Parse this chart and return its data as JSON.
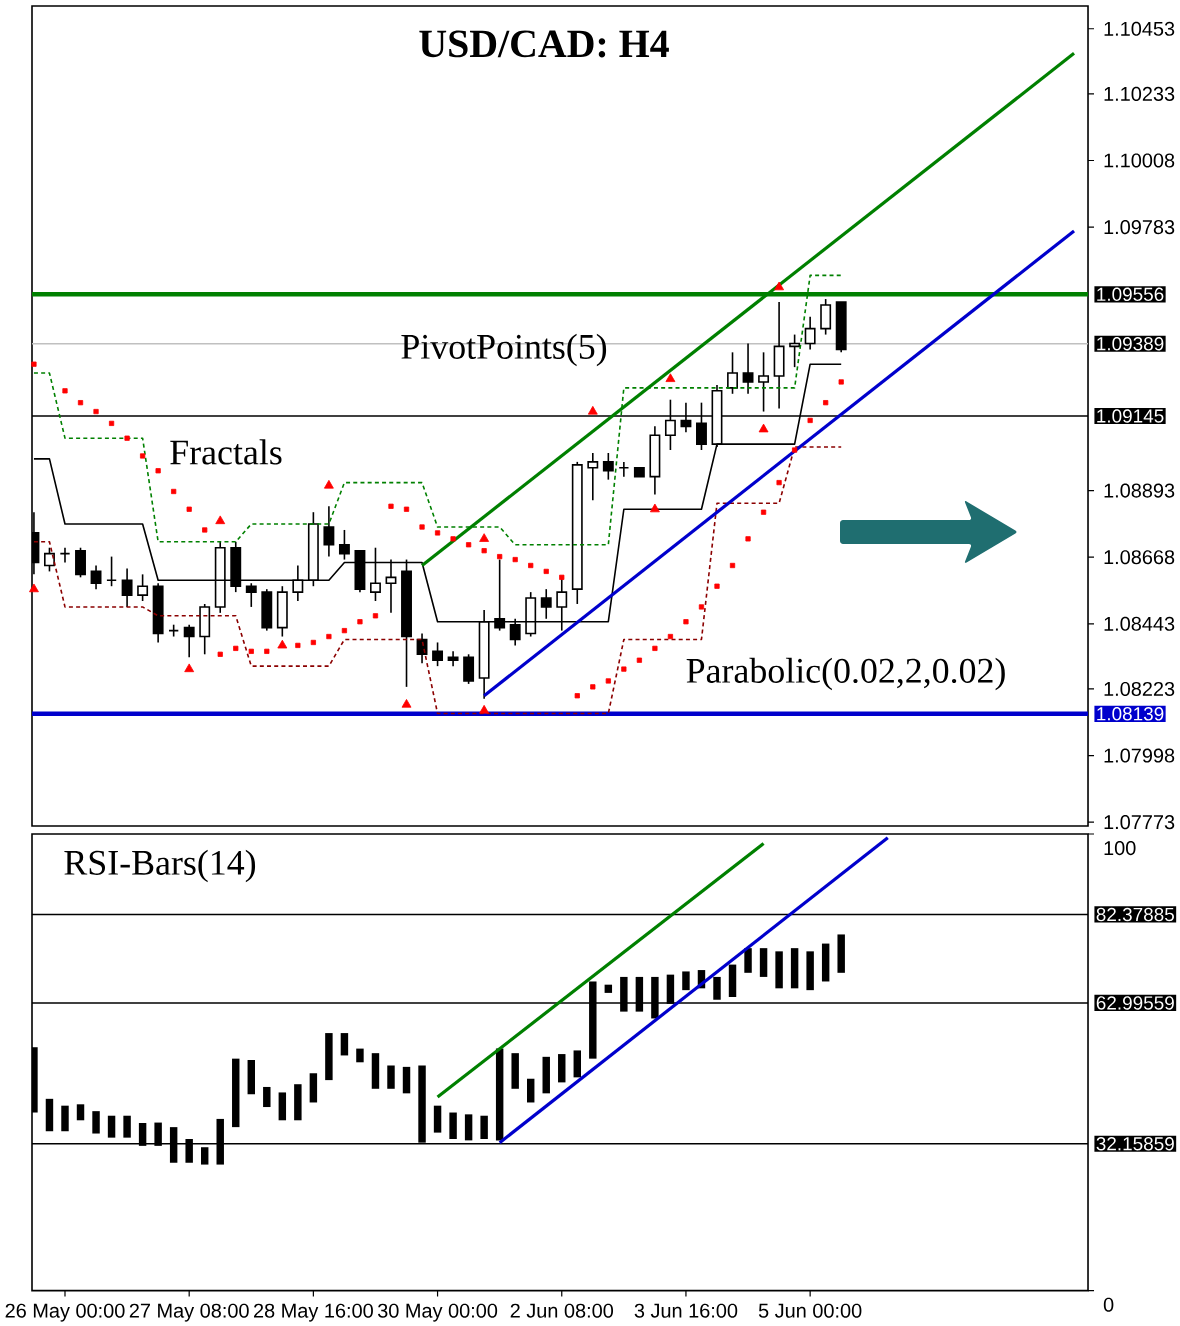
{
  "chart_data": [
    {
      "type": "candlestick",
      "title": "USD/CAD: H4",
      "color": "#000000",
      "categories": [
        null,
        null,
        null,
        null,
        null,
        null,
        null,
        null,
        null,
        null,
        null,
        null,
        null,
        null,
        null,
        null,
        null,
        null,
        null,
        null,
        null,
        null,
        null,
        null,
        null,
        null,
        null,
        null,
        null,
        null,
        null,
        null,
        null,
        null,
        null,
        null,
        null,
        null,
        null,
        null,
        null,
        null,
        null,
        null,
        null,
        null,
        null,
        null,
        null,
        null,
        null,
        null,
        null,
        null,
        null,
        null,
        null,
        null,
        null,
        null,
        null,
        null,
        null,
        null,
        null,
        null,
        null,
        null
      ],
      "ohlc": [
        [
          1.0875,
          1.0882,
          1.0861,
          1.0865
        ],
        [
          1.0864,
          1.087,
          1.0862,
          1.0868
        ],
        [
          1.0868,
          1.087,
          1.0865,
          1.0868
        ],
        [
          1.0869,
          1.087,
          1.086,
          1.0861
        ],
        [
          1.0862,
          1.0864,
          1.0856,
          1.0858
        ],
        [
          1.0859,
          1.0867,
          1.0857,
          1.0859
        ],
        [
          1.0859,
          1.0863,
          1.085,
          1.0854
        ],
        [
          1.0854,
          1.0861,
          1.0852,
          1.0857
        ],
        [
          1.0857,
          1.0858,
          1.0838,
          1.0841
        ],
        [
          1.0842,
          1.0844,
          1.084,
          1.0842
        ],
        [
          1.0843,
          1.0844,
          1.0833,
          1.084
        ],
        [
          1.084,
          1.0851,
          1.0834,
          1.085
        ],
        [
          1.085,
          1.0872,
          1.0848,
          1.087
        ],
        [
          1.087,
          1.0872,
          1.0855,
          1.0857
        ],
        [
          1.0857,
          1.0858,
          1.085,
          1.0855
        ],
        [
          1.0855,
          1.0856,
          1.0842,
          1.0843
        ],
        [
          1.0843,
          1.0857,
          1.084,
          1.0855
        ],
        [
          1.0855,
          1.0864,
          1.0852,
          1.0859
        ],
        [
          1.0859,
          1.0882,
          1.0857,
          1.0878
        ],
        [
          1.0877,
          1.0884,
          1.0867,
          1.0871
        ],
        [
          1.0871,
          1.0876,
          1.0866,
          1.0868
        ],
        [
          1.0869,
          1.0869,
          1.0855,
          1.0856
        ],
        [
          1.0855,
          1.087,
          1.0852,
          1.0858
        ],
        [
          1.0858,
          1.0866,
          1.0848,
          1.086
        ],
        [
          1.0862,
          1.0866,
          1.0823,
          1.084
        ],
        [
          1.0839,
          1.0841,
          1.0831,
          1.0834
        ],
        [
          1.0835,
          1.0838,
          1.083,
          1.0832
        ],
        [
          1.0833,
          1.0835,
          1.083,
          1.0832
        ],
        [
          1.0833,
          1.0834,
          1.0824,
          1.0825
        ],
        [
          1.0826,
          1.0849,
          1.0819,
          1.0845
        ],
        [
          1.0846,
          1.0866,
          1.0842,
          1.0843
        ],
        [
          1.0844,
          1.0846,
          1.0837,
          1.0839
        ],
        [
          1.0841,
          1.0855,
          1.084,
          1.0853
        ],
        [
          1.0853,
          1.0856,
          1.0846,
          1.085
        ],
        [
          1.085,
          1.086,
          1.0842,
          1.0855
        ],
        [
          1.0856,
          1.0899,
          1.0851,
          1.0898
        ],
        [
          1.0897,
          1.0902,
          1.0886,
          1.0899
        ],
        [
          1.0899,
          1.0902,
          1.0893,
          1.0896
        ],
        [
          1.0897,
          1.0899,
          1.0894,
          1.0897
        ],
        [
          1.0897,
          1.0897,
          1.0894,
          1.0894
        ],
        [
          1.0894,
          1.0911,
          1.0888,
          1.0908
        ],
        [
          1.0908,
          1.092,
          1.0903,
          1.0913
        ],
        [
          1.0913,
          1.0919,
          1.0909,
          1.0911
        ],
        [
          1.0912,
          1.0919,
          1.0903,
          1.0905
        ],
        [
          1.0905,
          1.0925,
          1.0904,
          1.0923
        ],
        [
          1.0924,
          1.0936,
          1.0922,
          1.0929
        ],
        [
          1.0929,
          1.0939,
          1.0922,
          1.0926
        ],
        [
          1.0926,
          1.0936,
          1.0916,
          1.0928
        ],
        [
          1.0928,
          1.0953,
          1.0917,
          1.0938
        ],
        [
          1.0938,
          1.0942,
          1.0931,
          1.0939
        ],
        [
          1.0939,
          1.0948,
          1.0937,
          1.0944
        ],
        [
          1.0944,
          1.0954,
          1.0942,
          1.0952
        ],
        [
          1.0953,
          1.0953,
          1.0936,
          1.0937
        ],
        null,
        null,
        null,
        null,
        null,
        null,
        null,
        null,
        null,
        null,
        null,
        null,
        null,
        null,
        null
      ],
      "series": [
        {
          "type": "scatter",
          "marker": "square",
          "color": "#ff0000",
          "values": [
            1.0932,
            null,
            1.0923,
            1.0919,
            1.0916,
            1.0912,
            1.0907,
            1.0901,
            1.0896,
            1.0889,
            1.0883,
            1.0876,
            1.0834,
            1.0836,
            1.0835,
            1.0835,
            null,
            1.0837,
            1.0838,
            1.084,
            1.0842,
            1.0845,
            1.0847,
            1.0884,
            1.0883,
            1.0877,
            1.0875,
            1.0873,
            1.0871,
            1.0869,
            1.0867,
            1.0866,
            1.0864,
            1.0862,
            1.086,
            1.082,
            1.0823,
            1.0825,
            1.0829,
            1.0832,
            1.0836,
            1.084,
            1.0845,
            1.085,
            1.0857,
            1.0864,
            1.0873,
            1.0882,
            1.0892,
            1.0903,
            1.0913,
            1.0919,
            1.0926,
            null,
            null,
            null,
            null,
            null,
            null,
            null,
            null,
            null,
            null,
            null,
            null,
            null,
            null,
            null
          ]
        },
        {
          "type": "scatter",
          "marker": "triangle",
          "color": "#ff0000",
          "values": [
            null,
            null,
            null,
            null,
            null,
            null,
            null,
            null,
            null,
            null,
            null,
            null,
            1.0879,
            null,
            null,
            null,
            null,
            null,
            null,
            1.0891,
            null,
            null,
            null,
            null,
            null,
            null,
            null,
            null,
            null,
            1.0873,
            null,
            null,
            null,
            null,
            null,
            null,
            1.0916,
            null,
            null,
            null,
            null,
            1.0927,
            null,
            null,
            null,
            null,
            null,
            null,
            1.0958,
            null,
            null,
            null,
            null,
            null,
            null,
            null,
            null,
            null,
            null,
            null,
            null,
            null,
            null,
            null,
            null,
            null,
            null,
            null
          ]
        },
        {
          "type": "scatter",
          "marker": "triangle",
          "color": "#ff0000",
          "values": [
            1.0856,
            null,
            null,
            null,
            null,
            null,
            null,
            null,
            null,
            null,
            1.0829,
            null,
            null,
            null,
            null,
            null,
            1.0837,
            null,
            null,
            null,
            null,
            null,
            null,
            null,
            1.0817,
            null,
            null,
            null,
            null,
            1.0815,
            null,
            null,
            null,
            null,
            null,
            null,
            null,
            null,
            null,
            null,
            1.0883,
            null,
            null,
            null,
            null,
            null,
            null,
            1.091,
            null,
            null,
            null,
            null,
            null,
            null,
            null,
            null,
            null,
            null,
            null,
            null,
            null,
            null,
            null,
            null,
            null,
            null,
            null,
            null
          ]
        },
        {
          "type": "line",
          "line_style": "solid",
          "color": "#000000",
          "values": [
            1.09,
            1.09,
            1.0878,
            1.0878,
            1.0878,
            1.0878,
            1.0878,
            1.0878,
            1.0859,
            1.0859,
            1.0859,
            1.0859,
            1.0859,
            1.0859,
            1.0859,
            1.0859,
            1.0859,
            1.0859,
            1.0859,
            1.0859,
            1.0865,
            1.0865,
            1.0865,
            1.0865,
            1.0865,
            1.0865,
            1.0845,
            1.0845,
            1.0845,
            1.0845,
            1.0845,
            1.0845,
            1.0845,
            1.0845,
            1.0845,
            1.0845,
            1.0845,
            1.0845,
            1.0883,
            1.0883,
            1.0883,
            1.0883,
            1.0883,
            1.0883,
            1.0905,
            1.0905,
            1.0905,
            1.0905,
            1.0905,
            1.0905,
            1.0932,
            1.0932,
            1.0932,
            null,
            null,
            null,
            null,
            null,
            null,
            null,
            null,
            null,
            null,
            null,
            null,
            null,
            null,
            null
          ]
        },
        {
          "type": "line",
          "line_style": "dashed",
          "color": "#008000",
          "values": [
            1.0929,
            1.0929,
            1.0907,
            1.0907,
            1.0907,
            1.0907,
            1.0907,
            1.0907,
            1.0872,
            1.0872,
            1.0872,
            1.0872,
            1.0872,
            1.0872,
            1.0878,
            1.0878,
            1.0878,
            1.0878,
            1.0878,
            1.0878,
            1.0892,
            1.0892,
            1.0892,
            1.0892,
            1.0892,
            1.0892,
            1.0877,
            1.0877,
            1.0877,
            1.0877,
            1.0877,
            1.0871,
            1.0871,
            1.0871,
            1.0871,
            1.0871,
            1.0871,
            1.0871,
            1.0924,
            1.0924,
            1.0924,
            1.0924,
            1.0924,
            1.0924,
            1.0924,
            1.0924,
            1.0924,
            1.0924,
            1.0924,
            1.0924,
            1.0962,
            1.0962,
            1.0962,
            null,
            null,
            null,
            null,
            null,
            null,
            null,
            null,
            null,
            null,
            null,
            null,
            null,
            null,
            null
          ]
        },
        {
          "type": "line",
          "line_style": "dashed",
          "color": "#8b0000",
          "values": [
            1.0872,
            1.0872,
            1.085,
            1.085,
            1.085,
            1.085,
            1.085,
            1.085,
            1.0847,
            1.0847,
            1.0847,
            1.0847,
            1.0847,
            1.0847,
            1.083,
            1.083,
            1.083,
            1.083,
            1.083,
            1.083,
            1.0839,
            1.0839,
            1.0839,
            1.0839,
            1.0839,
            1.0839,
            1.0814,
            1.0814,
            1.0814,
            1.0814,
            1.0814,
            1.0814,
            1.0814,
            1.0814,
            1.0814,
            1.0814,
            1.0814,
            1.0814,
            1.0839,
            1.0839,
            1.0839,
            1.0839,
            1.0839,
            1.0839,
            1.0885,
            1.0885,
            1.0885,
            1.0885,
            1.0885,
            1.0904,
            1.0904,
            1.0904,
            1.0904,
            null,
            null,
            null,
            null,
            null,
            null,
            null,
            null,
            null,
            null,
            null,
            null,
            null,
            null,
            null
          ]
        },
        {
          "type": "line",
          "line_style": "solid",
          "color": "#008000",
          "values": [
            null,
            null,
            null,
            null,
            null,
            null,
            null,
            null,
            null,
            null,
            null,
            null,
            null,
            null,
            null,
            null,
            null,
            null,
            null,
            null,
            null,
            null,
            null,
            null,
            null,
            1.0864,
            null,
            null,
            null,
            null,
            null,
            null,
            null,
            null,
            null,
            null,
            null,
            null,
            null,
            null,
            null,
            null,
            null,
            null,
            null,
            null,
            null,
            null,
            null,
            null,
            null,
            null,
            null,
            null,
            null,
            null,
            null,
            null,
            null,
            null,
            null,
            null,
            null,
            null,
            null,
            null,
            null,
            1.1037
          ]
        },
        {
          "type": "line",
          "line_style": "solid",
          "color": "#0000cc",
          "values": [
            null,
            null,
            null,
            null,
            null,
            null,
            null,
            null,
            null,
            null,
            null,
            null,
            null,
            null,
            null,
            null,
            null,
            null,
            null,
            null,
            null,
            null,
            null,
            null,
            null,
            null,
            null,
            null,
            null,
            1.082,
            null,
            null,
            null,
            null,
            null,
            null,
            null,
            null,
            null,
            null,
            null,
            null,
            null,
            null,
            null,
            null,
            null,
            null,
            null,
            null,
            null,
            null,
            null,
            null,
            null,
            null,
            null,
            null,
            null,
            null,
            null,
            null,
            null,
            null,
            null,
            null,
            null,
            1.0977
          ]
        }
      ],
      "ylim": [
        1.0776,
        1.1053
      ],
      "yticks": [
        1.10453,
        1.10233,
        1.10008,
        1.09783,
        1.08893,
        1.08668,
        1.08443,
        1.08223,
        1.07998,
        1.07773
      ],
      "tick_labels": "y",
      "ref_lines": [
        {
          "axis": "y",
          "value": 1.09556,
          "label": "1.09556",
          "color": "#008000"
        },
        {
          "axis": "y",
          "value": 1.09389,
          "label": "1.09389",
          "color": "#c0c0c0"
        },
        {
          "axis": "y",
          "value": 1.09145,
          "label": "1.09145",
          "color": "#000000"
        },
        {
          "axis": "y",
          "value": 1.08139,
          "label": "1.08139",
          "color": "#0000cc"
        }
      ],
      "annotations": [
        "PivotPoints(5)",
        "Fractals",
        "Parabolic(0.02,2,0.02)"
      ]
    },
    {
      "type": "bar",
      "color": "#000000",
      "categories": [
        null,
        null,
        "26 May 00:00",
        null,
        null,
        null,
        null,
        null,
        null,
        null,
        "27 May 08:00",
        null,
        null,
        null,
        null,
        null,
        null,
        null,
        "28 May 16:00",
        null,
        null,
        null,
        null,
        null,
        null,
        null,
        "30 May 00:00",
        null,
        null,
        null,
        null,
        null,
        null,
        null,
        "2 Jun 08:00",
        null,
        null,
        null,
        null,
        null,
        null,
        null,
        "3 Jun 16:00",
        null,
        null,
        null,
        null,
        null,
        null,
        null,
        "5 Jun 00:00",
        null,
        null,
        null,
        null,
        null,
        null,
        null,
        null,
        null,
        null,
        null,
        null,
        null,
        null,
        null,
        null,
        null
      ],
      "series": [
        {
          "type": "bar",
          "color": "#000000",
          "base": [
            39.0,
            34.9,
            34.9,
            37.3,
            34.4,
            33.5,
            33.5,
            31.7,
            31.7,
            28.0,
            28.0,
            27.6,
            27.6,
            35.8,
            43.0,
            40.2,
            37.3,
            37.3,
            41.2,
            46.1,
            51.5,
            50.0,
            44.2,
            44.2,
            43.2,
            32.4,
            34.6,
            33.2,
            32.9,
            33.2,
            32.9,
            44.2,
            41.2,
            43.2,
            45.6,
            46.7,
            50.8,
            65.2,
            61.1,
            61.1,
            59.6,
            62.8,
            65.8,
            66.2,
            63.7,
            64.3,
            69.6,
            68.7,
            66.2,
            66.2,
            65.8,
            67.7,
            69.6,
            null,
            null,
            null,
            null,
            null,
            null,
            null,
            null,
            null,
            null,
            null,
            null,
            null,
            null,
            null
          ],
          "values": [
            14.3,
            7.1,
            5.6,
            3.5,
            4.9,
            4.8,
            4.8,
            5.0,
            5.1,
            7.8,
            5.2,
            3.8,
            10.0,
            15.0,
            7.5,
            4.4,
            6.1,
            7.9,
            6.4,
            10.3,
            4.9,
            3.0,
            7.8,
            5.1,
            5.8,
            16.9,
            5.9,
            5.8,
            5.7,
            5.1,
            20.1,
            7.8,
            5.2,
            8.0,
            6.2,
            5.9,
            16.9,
            1.8,
            7.6,
            7.6,
            9.1,
            6.4,
            4.1,
            4.0,
            5.0,
            7.1,
            5.4,
            6.3,
            8.1,
            8.8,
            8.5,
            8.3,
            8.4,
            null,
            null,
            null,
            null,
            null,
            null,
            null,
            null,
            null,
            null,
            null,
            null,
            null,
            null,
            null
          ]
        },
        {
          "type": "line",
          "line_style": "solid",
          "color": "#008000",
          "values": [
            null,
            null,
            null,
            null,
            null,
            null,
            null,
            null,
            null,
            null,
            null,
            null,
            null,
            null,
            null,
            null,
            null,
            null,
            null,
            null,
            null,
            null,
            null,
            null,
            null,
            null,
            42.4,
            null,
            null,
            null,
            null,
            null,
            null,
            null,
            null,
            null,
            null,
            null,
            null,
            null,
            null,
            null,
            null,
            null,
            null,
            null,
            null,
            97.9,
            null,
            null,
            null,
            null,
            null,
            null,
            null,
            null,
            null,
            null,
            null,
            null,
            null,
            null,
            null,
            null,
            null,
            null,
            null,
            null
          ]
        },
        {
          "type": "line",
          "line_style": "solid",
          "color": "#0000cc",
          "values": [
            null,
            null,
            null,
            null,
            null,
            null,
            null,
            null,
            null,
            null,
            null,
            null,
            null,
            null,
            null,
            null,
            null,
            null,
            null,
            null,
            null,
            null,
            null,
            null,
            null,
            null,
            null,
            null,
            null,
            null,
            32.4,
            null,
            null,
            null,
            null,
            null,
            null,
            null,
            null,
            null,
            null,
            null,
            null,
            null,
            null,
            null,
            null,
            null,
            null,
            null,
            null,
            null,
            null,
            null,
            null,
            99.2,
            null,
            null,
            null,
            null,
            null,
            null,
            null,
            null,
            null,
            null,
            null,
            null
          ]
        }
      ],
      "ylim": [
        0,
        100
      ],
      "yticks": [
        0,
        100
      ],
      "ref_lines": [
        {
          "axis": "y",
          "value": 82.37885,
          "label": "82.37885",
          "color": "#000000"
        },
        {
          "axis": "y",
          "value": 62.99559,
          "label": "62.99559",
          "color": "#000000"
        },
        {
          "axis": "y",
          "value": 32.15859,
          "label": "32.15859",
          "color": "#000000"
        }
      ],
      "annotations": [
        "RSI-Bars(14)"
      ]
    }
  ]
}
